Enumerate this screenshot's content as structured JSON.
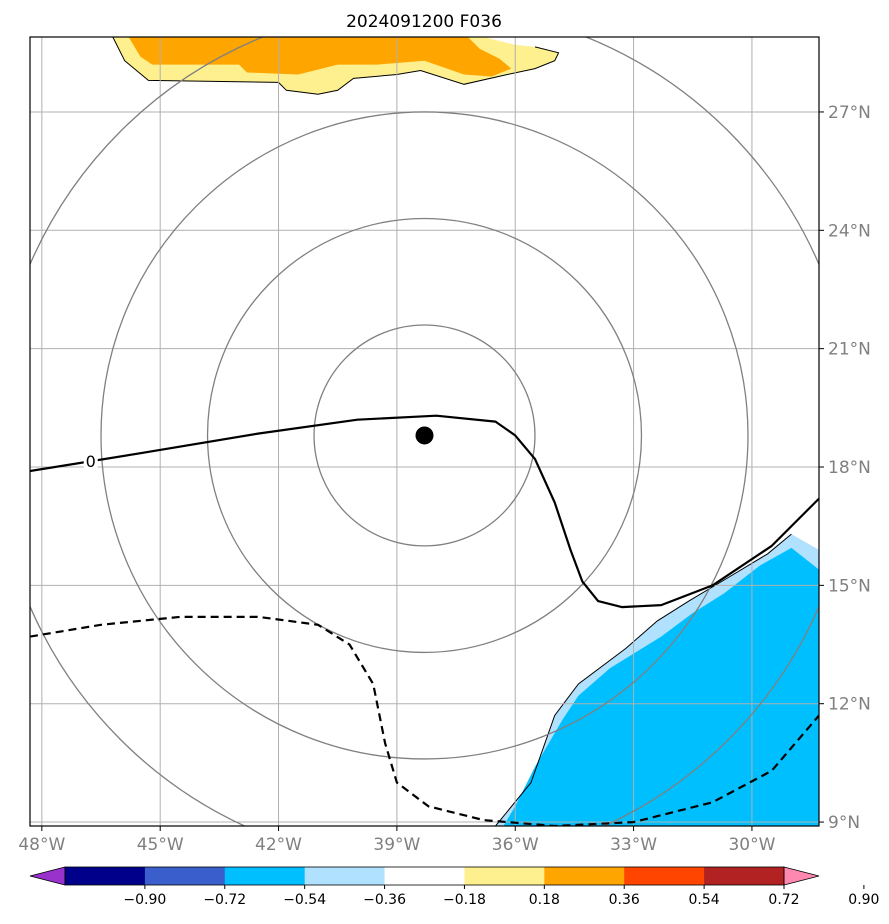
{
  "chart_data": {
    "type": "contour map",
    "title": "2024091200 F036",
    "x_axis": {
      "unit": "degrees longitude",
      "range": [
        -48.3,
        -28.3
      ],
      "ticks": [
        -48,
        -45,
        -42,
        -39,
        -36,
        -33,
        -30
      ],
      "tick_labels": [
        "48°W",
        "45°W",
        "42°W",
        "39°W",
        "36°W",
        "33°W",
        "30°W"
      ]
    },
    "y_axis": {
      "unit": "degrees latitude",
      "range": [
        8.9,
        28.9
      ],
      "ticks": [
        9,
        12,
        15,
        18,
        21,
        24,
        27
      ],
      "tick_labels": [
        "9°N",
        "12°N",
        "15°N",
        "18°N",
        "21°N",
        "24°N",
        "27°N"
      ],
      "tick_side": "right"
    },
    "grid": true,
    "center_marker": {
      "lon": -38.3,
      "lat": 18.8
    },
    "range_rings_radius_deg": [
      2.8,
      5.5,
      8.2,
      10.9
    ],
    "range_rings_color": "#808080",
    "colorbar": {
      "orientation": "horizontal",
      "extend": "both",
      "levels": [
        -0.9,
        -0.72,
        -0.54,
        -0.36,
        -0.18,
        0.18,
        0.36,
        0.54,
        0.72,
        0.9
      ],
      "tick_labels": [
        "−0.90",
        "−0.72",
        "−0.54",
        "−0.36",
        "−0.18",
        "0.18",
        "0.36",
        "0.54",
        "0.72",
        "0.90"
      ],
      "colors": [
        "#9932cc",
        "#00008b",
        "#3a5fcd",
        "#00bfff",
        "#b0e2ff",
        "#ffffff",
        "#fff08f",
        "#ffa500",
        "#ff4500",
        "#b22222",
        "#ff88b0"
      ]
    },
    "contour_lines": [
      {
        "level": 0,
        "style": "solid",
        "label": "0",
        "points": [
          [
            -48.3,
            17.9
          ],
          [
            -45.5,
            18.35
          ],
          [
            -42.5,
            18.85
          ],
          [
            -40,
            19.2
          ],
          [
            -38,
            19.3
          ],
          [
            -36.5,
            19.15
          ],
          [
            -36,
            18.8
          ],
          [
            -35.5,
            18.2
          ],
          [
            -35,
            17.1
          ],
          [
            -34.6,
            15.9
          ],
          [
            -34.3,
            15.1
          ],
          [
            -33.9,
            14.6
          ],
          [
            -33.3,
            14.45
          ],
          [
            -32.3,
            14.5
          ],
          [
            -31,
            15.0
          ],
          [
            -29.5,
            16.0
          ],
          [
            -28.3,
            17.2
          ]
        ]
      },
      {
        "level": -0.18,
        "style": "dashed",
        "points": [
          [
            -48.3,
            13.7
          ],
          [
            -46.5,
            14.0
          ],
          [
            -44.5,
            14.2
          ],
          [
            -42.5,
            14.2
          ],
          [
            -41,
            14
          ],
          [
            -40.2,
            13.5
          ],
          [
            -39.6,
            12.5
          ],
          [
            -39.3,
            11.0
          ],
          [
            -39.0,
            10.0
          ],
          [
            -38.2,
            9.4
          ],
          [
            -36.8,
            9.05
          ],
          [
            -35,
            8.9
          ],
          [
            -33,
            9.0
          ],
          [
            -31,
            9.5
          ],
          [
            -29.5,
            10.3
          ],
          [
            -28.3,
            11.7
          ]
        ]
      }
    ],
    "filled_regions": [
      {
        "range": "0.18 to 0.36",
        "color": "#fff08f",
        "points": [
          [
            -46.2,
            28.9
          ],
          [
            -45.9,
            28.3
          ],
          [
            -45.3,
            27.8
          ],
          [
            -42.0,
            27.75
          ],
          [
            -41.8,
            27.55
          ],
          [
            -41.0,
            27.45
          ],
          [
            -40.5,
            27.55
          ],
          [
            -40.1,
            27.85
          ],
          [
            -39.0,
            27.95
          ],
          [
            -38.4,
            28.05
          ],
          [
            -37.3,
            27.7
          ],
          [
            -36.2,
            27.95
          ],
          [
            -35.5,
            28.1
          ],
          [
            -35.0,
            28.3
          ],
          [
            -34.9,
            28.5
          ],
          [
            -35.5,
            28.65
          ],
          [
            -36.0,
            28.7
          ],
          [
            -36.8,
            28.9
          ]
        ]
      },
      {
        "range": "0.36 to 0.54",
        "color": "#ffa500",
        "points": [
          [
            -45.8,
            28.9
          ],
          [
            -45.5,
            28.4
          ],
          [
            -45.2,
            28.2
          ],
          [
            -43.0,
            28.2
          ],
          [
            -42.8,
            28.0
          ],
          [
            -41.5,
            27.95
          ],
          [
            -40.5,
            28.2
          ],
          [
            -39.5,
            28.2
          ],
          [
            -38.3,
            28.3
          ],
          [
            -37.3,
            27.95
          ],
          [
            -36.6,
            27.9
          ],
          [
            -36.1,
            28.1
          ],
          [
            -36.4,
            28.35
          ],
          [
            -36.9,
            28.6
          ],
          [
            -37.2,
            28.9
          ]
        ]
      },
      {
        "range": "-0.36 to -0.18",
        "color": "#b0e2ff",
        "points": [
          [
            -36.5,
            8.9
          ],
          [
            -35.6,
            10.0
          ],
          [
            -35.0,
            11.7
          ],
          [
            -34.4,
            12.5
          ],
          [
            -33.2,
            13.4
          ],
          [
            -32.4,
            14.1
          ],
          [
            -31.6,
            14.6
          ],
          [
            -30.6,
            15.2
          ],
          [
            -29.6,
            15.8
          ],
          [
            -29.0,
            16.3
          ],
          [
            -28.3,
            15.9
          ],
          [
            -28.3,
            8.9
          ]
        ]
      },
      {
        "range": "-0.54 to -0.36",
        "color": "#00bfff",
        "points": [
          [
            -36.3,
            8.9
          ],
          [
            -36.0,
            9.4
          ],
          [
            -35.5,
            10.4
          ],
          [
            -34.8,
            11.6
          ],
          [
            -34.4,
            12.2
          ],
          [
            -33.6,
            12.9
          ],
          [
            -32.3,
            13.7
          ],
          [
            -31.5,
            14.3
          ],
          [
            -30.7,
            14.8
          ],
          [
            -29.8,
            15.5
          ],
          [
            -29.0,
            15.95
          ],
          [
            -28.3,
            15.4
          ],
          [
            -28.3,
            8.9
          ]
        ]
      }
    ]
  }
}
